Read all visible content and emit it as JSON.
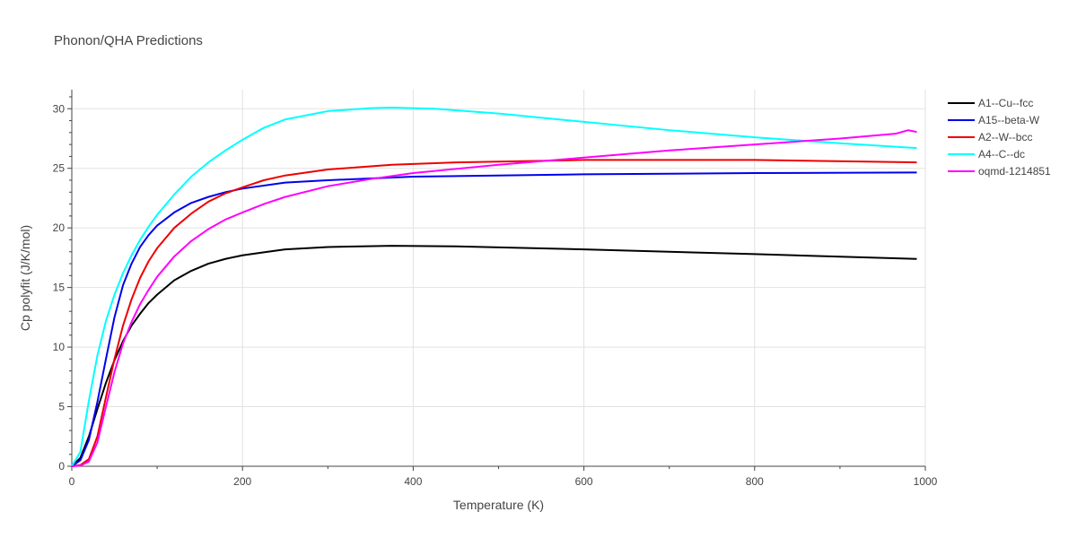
{
  "chart_data": {
    "type": "line",
    "title": "Phonon/QHA Predictions",
    "xlabel": "Temperature (K)",
    "ylabel": "Cp polyfit (J/K/mol)",
    "xlim": [
      0,
      1000
    ],
    "ylim": [
      0,
      31.6
    ],
    "xticks": [
      0,
      200,
      400,
      600,
      800,
      1000
    ],
    "yticks": [
      0,
      5,
      10,
      15,
      20,
      25,
      30
    ],
    "grid": true,
    "legend_position": "top-right",
    "series": [
      {
        "name": "A1--Cu--fcc",
        "color": "#000000",
        "x": [
          0,
          10,
          20,
          30,
          40,
          50,
          60,
          70,
          80,
          90,
          100,
          120,
          140,
          160,
          180,
          200,
          225,
          250,
          300,
          375,
          450,
          600,
          800,
          990
        ],
        "y": [
          0,
          0.7,
          2.5,
          4.8,
          7.0,
          8.9,
          10.5,
          11.8,
          12.8,
          13.7,
          14.4,
          15.6,
          16.4,
          17.0,
          17.4,
          17.7,
          17.95,
          18.2,
          18.4,
          18.5,
          18.45,
          18.2,
          17.8,
          17.4
        ]
      },
      {
        "name": "A15--beta-W",
        "color": "#0000ee",
        "x": [
          0,
          10,
          20,
          30,
          40,
          50,
          60,
          70,
          80,
          90,
          100,
          120,
          140,
          160,
          180,
          200,
          250,
          300,
          400,
          600,
          800,
          990
        ],
        "y": [
          0,
          0.5,
          2.2,
          5.4,
          9.0,
          12.5,
          15.2,
          17.0,
          18.4,
          19.4,
          20.2,
          21.3,
          22.1,
          22.6,
          23.0,
          23.3,
          23.8,
          24.0,
          24.3,
          24.5,
          24.6,
          24.65
        ]
      },
      {
        "name": "A2--W--bcc",
        "color": "#ee0000",
        "x": [
          0,
          10,
          20,
          30,
          40,
          50,
          60,
          70,
          80,
          90,
          100,
          120,
          140,
          160,
          180,
          200,
          225,
          250,
          300,
          375,
          450,
          600,
          800,
          990
        ],
        "y": [
          0,
          0.1,
          0.6,
          2.5,
          5.8,
          9.0,
          11.8,
          14.0,
          15.8,
          17.2,
          18.3,
          20.0,
          21.2,
          22.2,
          22.9,
          23.4,
          24.0,
          24.4,
          24.9,
          25.3,
          25.5,
          25.7,
          25.7,
          25.5
        ]
      },
      {
        "name": "A4--C--dc",
        "color": "#00ffff",
        "x": [
          0,
          10,
          20,
          30,
          40,
          50,
          60,
          70,
          80,
          90,
          100,
          120,
          140,
          160,
          180,
          200,
          225,
          250,
          300,
          350,
          375,
          425,
          500,
          600,
          700,
          800,
          900,
          990
        ],
        "y": [
          0,
          1.2,
          5.5,
          9.3,
          12.2,
          14.4,
          16.2,
          17.7,
          19.0,
          20.1,
          21.1,
          22.8,
          24.3,
          25.5,
          26.5,
          27.4,
          28.4,
          29.1,
          29.8,
          30.05,
          30.1,
          30.0,
          29.6,
          28.9,
          28.2,
          27.6,
          27.1,
          26.7
        ]
      },
      {
        "name": "oqmd-1214851",
        "color": "#ff00ff",
        "x": [
          0,
          10,
          20,
          30,
          40,
          50,
          60,
          70,
          80,
          90,
          100,
          120,
          140,
          160,
          180,
          200,
          225,
          250,
          300,
          350,
          400,
          500,
          600,
          700,
          800,
          900,
          965,
          980,
          990
        ],
        "y": [
          0,
          0.05,
          0.4,
          2.0,
          5.0,
          7.9,
          10.3,
          12.1,
          13.6,
          14.8,
          15.9,
          17.6,
          18.9,
          19.9,
          20.7,
          21.3,
          22.0,
          22.6,
          23.5,
          24.1,
          24.6,
          25.3,
          25.9,
          26.5,
          27.0,
          27.5,
          27.9,
          28.2,
          28.05
        ]
      }
    ]
  }
}
